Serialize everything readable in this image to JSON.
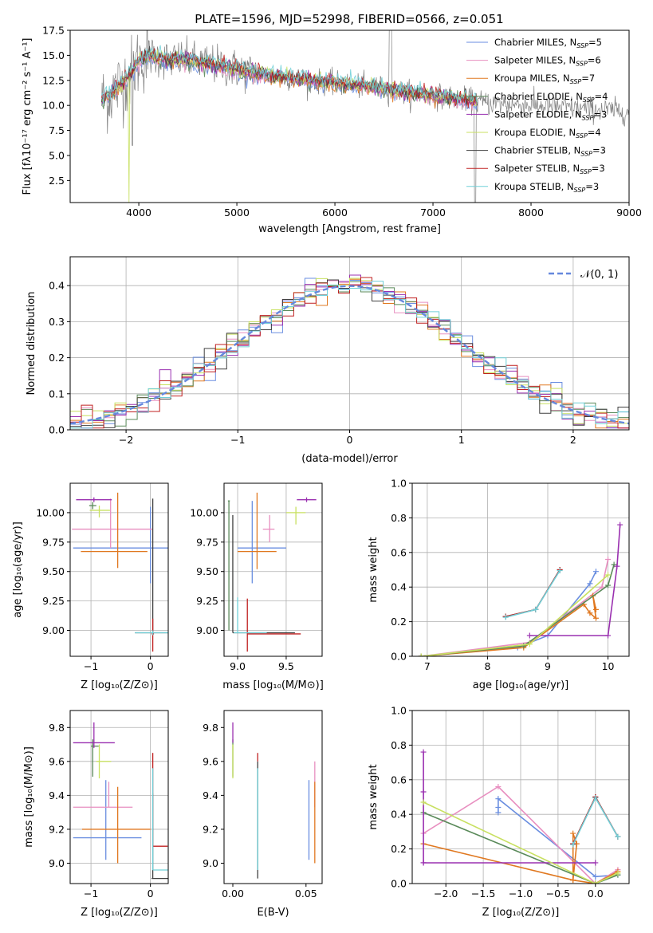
{
  "colors": [
    "#6a8ee0",
    "#e88fc0",
    "#e07820",
    "#5a8a5a",
    "#9a30b0",
    "#c8e060",
    "#404040",
    "#c02020",
    "#70d0d8"
  ],
  "chart_data": [
    {
      "id": "spectrum",
      "type": "line",
      "title": "PLATE=1596, MJD=52998, FIBERID=0566, z=0.051",
      "xlabel": "wavelength [Angstrom, rest frame]",
      "ylabel": "Flux [fλ10⁻¹⁷ erg cm⁻² s⁻¹ A⁻¹]",
      "xlim": [
        3300,
        9000
      ],
      "ylim": [
        0.3,
        17.5
      ],
      "xticks": [
        4000,
        5000,
        6000,
        7000,
        8000,
        9000
      ],
      "xticklabels": [
        "4000",
        "5000",
        "6000",
        "7000",
        "8000",
        "9000"
      ],
      "yticks": [
        2.5,
        5.0,
        7.5,
        10.0,
        12.5,
        15.0,
        17.5
      ],
      "yticklabels": [
        "2.5",
        "5.0",
        "7.5",
        "10.0",
        "12.5",
        "15.0",
        "17.5"
      ],
      "legend_position": "right",
      "legend": [
        {
          "model": "Chabrier MILES",
          "nssp": "=5"
        },
        {
          "model": "Salpeter MILES",
          "nssp": "=6"
        },
        {
          "model": "Kroupa MILES",
          "nssp": "=7"
        },
        {
          "model": "Chabrier ELODIE",
          "nssp": "=4"
        },
        {
          "model": "Salpeter ELODIE",
          "nssp": "=3"
        },
        {
          "model": "Kroupa ELODIE",
          "nssp": "=4"
        },
        {
          "model": "Chabrier STELIB",
          "nssp": "=3"
        },
        {
          "model": "Salpeter STELIB",
          "nssp": "=3"
        },
        {
          "model": "Kroupa STELIB",
          "nssp": "=3"
        }
      ],
      "legend_prefix": "N",
      "legend_sub": "SSP",
      "data_color": "#808080",
      "continuum": {
        "x": [
          3620,
          3700,
          3800,
          3900,
          4000,
          4100,
          4200,
          4300,
          4400,
          4500,
          4600,
          4700,
          4800,
          5000,
          5200,
          5400,
          5600,
          5800,
          6000,
          6200,
          6400,
          6600,
          6800,
          7000,
          7200,
          7400,
          7500
        ],
        "y": [
          10.5,
          11.0,
          12.0,
          13.0,
          14.5,
          15.0,
          14.8,
          14.5,
          14.6,
          14.5,
          14.3,
          14.2,
          14.0,
          13.6,
          13.2,
          12.9,
          12.7,
          12.4,
          12.2,
          12.0,
          11.8,
          11.5,
          11.2,
          11.0,
          10.7,
          10.5,
          10.3
        ]
      },
      "data_range": [
        3620,
        9000
      ],
      "model_range": [
        3620,
        7450
      ]
    },
    {
      "id": "residuals",
      "type": "line",
      "xlabel": "(data-model)/error",
      "ylabel": "Normed distribution",
      "xlim": [
        -2.5,
        2.5
      ],
      "ylim": [
        0,
        0.48
      ],
      "xticks": [
        -2,
        -1,
        0,
        1,
        2
      ],
      "xticklabels": [
        "−2",
        "−1",
        "0",
        "1",
        "2"
      ],
      "yticks": [
        0.0,
        0.1,
        0.2,
        0.3,
        0.4
      ],
      "yticklabels": [
        "0.0",
        "0.1",
        "0.2",
        "0.3",
        "0.4"
      ],
      "grid": true,
      "legend_position": "top-right",
      "reference_label": "𝒩(0, 1)",
      "reference_color": "#6688dd"
    },
    {
      "id": "age-vs-Z",
      "type": "scatter",
      "xlabel": "Z [log₁₀(Z/Z⊙)]",
      "ylabel": "age  [log₁₀(age/yr)]",
      "xlim": [
        -1.35,
        0.3
      ],
      "ylim": [
        8.78,
        10.25
      ],
      "xticks": [
        -1,
        0
      ],
      "xticklabels": [
        "−1",
        "0"
      ],
      "yticks": [
        9.0,
        9.25,
        9.5,
        9.75,
        10.0
      ],
      "yticklabels": [
        "9.00",
        "9.25",
        "9.50",
        "9.75",
        "10.00"
      ],
      "grid": true,
      "points": [
        {
          "color": 0,
          "x": 0.0,
          "y": 9.7,
          "xerr": [
            1.3,
            0.35
          ],
          "yerr": [
            0.3,
            0.35
          ]
        },
        {
          "color": 1,
          "x": -0.67,
          "y": 9.86,
          "xerr": [
            0.65,
            0.7
          ],
          "yerr": [
            0.16,
            0.26
          ]
        },
        {
          "color": 2,
          "x": -0.55,
          "y": 9.67,
          "xerr": [
            0.62,
            0.5
          ],
          "yerr": [
            0.14,
            0.5
          ]
        },
        {
          "color": 3,
          "x": -0.97,
          "y": 10.06,
          "xerr": [
            0.06,
            0.06
          ],
          "yerr": [
            0.03,
            0.03
          ]
        },
        {
          "color": 4,
          "x": -0.95,
          "y": 10.11,
          "xerr": [
            0.3,
            0.3
          ],
          "yerr": [
            0.02,
            0.02
          ]
        },
        {
          "color": 5,
          "x": -0.86,
          "y": 10.02,
          "xerr": [
            0.16,
            0.18
          ],
          "yerr": [
            0.06,
            0.04
          ]
        },
        {
          "color": 6,
          "x": 0.04,
          "y": 8.98,
          "xerr": [
            0.3,
            0.3
          ],
          "yerr": [
            0.01,
            1.14
          ]
        },
        {
          "color": 7,
          "x": 0.04,
          "y": 8.97,
          "xerr": [
            0.02,
            0.02
          ],
          "yerr": [
            0.15,
            0.13
          ]
        },
        {
          "color": 8,
          "x": 0.04,
          "y": 8.98,
          "xerr": [
            0.3,
            0.3
          ],
          "yerr": [
            0.02,
            0.02
          ]
        }
      ]
    },
    {
      "id": "age-vs-mass",
      "type": "scatter",
      "xlabel": "mass [log₁₀(M/M⊙)]",
      "ylabel": "",
      "xlim": [
        8.86,
        9.87
      ],
      "ylim": [
        8.78,
        10.25
      ],
      "xticks": [
        9.0,
        9.5
      ],
      "xticklabels": [
        "9.0",
        "9.5"
      ],
      "yticks": [
        9.0,
        9.25,
        9.5,
        9.75,
        10.0
      ],
      "yticklabels": [
        "9.00",
        "9.25",
        "9.50",
        "9.75",
        "10.00"
      ],
      "grid": true,
      "points": [
        {
          "color": 0,
          "x": 9.15,
          "y": 9.7,
          "xerr": [
            0.15,
            0.35
          ],
          "yerr": [
            0.3,
            0.4
          ]
        },
        {
          "color": 1,
          "x": 9.33,
          "y": 9.86,
          "xerr": [
            0.07,
            0.05
          ],
          "yerr": [
            0.11,
            0.12
          ]
        },
        {
          "color": 2,
          "x": 9.2,
          "y": 9.67,
          "xerr": [
            0.2,
            0.2
          ],
          "yerr": [
            0.15,
            0.5
          ]
        },
        {
          "color": 3,
          "x": 8.91,
          "y": 10.1,
          "xerr": [
            0.01,
            0.01
          ],
          "yerr": [
            1.1,
            0.0
          ]
        },
        {
          "color": 4,
          "x": 9.71,
          "y": 10.11,
          "xerr": [
            0.1,
            0.1
          ],
          "yerr": [
            0.02,
            0.02
          ]
        },
        {
          "color": 5,
          "x": 9.6,
          "y": 10.0,
          "xerr": [
            0.1,
            0.1
          ],
          "yerr": [
            0.1,
            0.05
          ]
        },
        {
          "color": 6,
          "x": 8.95,
          "y": 8.98,
          "xerr": [
            0.0,
            0.64
          ],
          "yerr": [
            0.0,
            1.0
          ]
        },
        {
          "color": 7,
          "x": 9.1,
          "y": 8.97,
          "xerr": [
            0.0,
            0.55
          ],
          "yerr": [
            0.15,
            0.3
          ]
        },
        {
          "color": 8,
          "x": 9.0,
          "y": 8.98,
          "xerr": [
            0.04,
            0.3
          ],
          "yerr": [
            0.0,
            0.3
          ]
        }
      ]
    },
    {
      "id": "weight-vs-age",
      "type": "line",
      "xlabel": "age  [log₁₀(age/yr)]",
      "ylabel": "mass weight",
      "xlim": [
        6.75,
        10.35
      ],
      "ylim": [
        0.0,
        1.0
      ],
      "xticks": [
        7,
        8,
        9,
        10
      ],
      "xticklabels": [
        "7",
        "8",
        "9",
        "10"
      ],
      "yticks": [
        0.0,
        0.2,
        0.4,
        0.6,
        0.8,
        1.0
      ],
      "yticklabels": [
        "0.0",
        "0.2",
        "0.4",
        "0.6",
        "0.8",
        "1.0"
      ],
      "grid": true,
      "series": [
        {
          "color": 0,
          "x": [
            6.9,
            8.5,
            9.0,
            9.7,
            9.8
          ],
          "y": [
            0.0,
            0.05,
            0.12,
            0.42,
            0.49
          ]
        },
        {
          "color": 1,
          "x": [
            6.9,
            8.7,
            9.9,
            10.0
          ],
          "y": [
            0.0,
            0.08,
            0.4,
            0.56
          ]
        },
        {
          "color": 2,
          "x": [
            6.9,
            8.6,
            9.6,
            9.7,
            9.8,
            9.75,
            9.8
          ],
          "y": [
            0.0,
            0.05,
            0.3,
            0.25,
            0.22,
            0.35,
            0.27
          ]
        },
        {
          "color": 3,
          "x": [
            6.9,
            8.6,
            10.0,
            10.1
          ],
          "y": [
            0.0,
            0.06,
            0.41,
            0.53
          ]
        },
        {
          "color": 4,
          "x": [
            8.7,
            10.0,
            10.15,
            10.2
          ],
          "y": [
            0.12,
            0.12,
            0.52,
            0.76
          ]
        },
        {
          "color": 5,
          "x": [
            6.9,
            8.7,
            10.0
          ],
          "y": [
            0.0,
            0.07,
            0.47
          ]
        },
        {
          "color": 6,
          "x": [
            8.3,
            8.8,
            9.2
          ],
          "y": [
            0.23,
            0.27,
            0.5
          ]
        },
        {
          "color": 7,
          "x": [
            8.3,
            8.8,
            9.2
          ],
          "y": [
            0.23,
            0.27,
            0.5
          ]
        },
        {
          "color": 8,
          "x": [
            8.3,
            8.8,
            9.2
          ],
          "y": [
            0.225,
            0.27,
            0.495
          ]
        }
      ]
    },
    {
      "id": "mass-vs-Z",
      "type": "scatter",
      "xlabel": "Z [log₁₀(Z/Z⊙)]",
      "ylabel": "mass [log₁₀(M/M⊙)]",
      "xlim": [
        -1.35,
        0.3
      ],
      "ylim": [
        8.88,
        9.9
      ],
      "xticks": [
        -1,
        0
      ],
      "xticklabels": [
        "−1",
        "0"
      ],
      "yticks": [
        9.0,
        9.2,
        9.4,
        9.6,
        9.8
      ],
      "yticklabels": [
        "9.0",
        "9.2",
        "9.4",
        "9.6",
        "9.8"
      ],
      "grid": true,
      "points": [
        {
          "color": 0,
          "x": -0.75,
          "y": 9.15,
          "xerr": [
            0.55,
            0.6
          ],
          "yerr": [
            0.13,
            0.34
          ]
        },
        {
          "color": 1,
          "x": -0.7,
          "y": 9.33,
          "xerr": [
            0.6,
            0.4
          ],
          "yerr": [
            0.0,
            0.15
          ]
        },
        {
          "color": 2,
          "x": -0.55,
          "y": 9.2,
          "xerr": [
            0.6,
            0.55
          ],
          "yerr": [
            0.2,
            0.25
          ]
        },
        {
          "color": 3,
          "x": -0.97,
          "y": 9.69,
          "xerr": [
            0.03,
            0.1
          ],
          "yerr": [
            0.18,
            0.04
          ]
        },
        {
          "color": 4,
          "x": -0.95,
          "y": 9.71,
          "xerr": [
            0.35,
            0.35
          ],
          "yerr": [
            0.03,
            0.12
          ]
        },
        {
          "color": 5,
          "x": -0.86,
          "y": 9.6,
          "xerr": [
            0.05,
            0.2
          ],
          "yerr": [
            0.1,
            0.1
          ]
        },
        {
          "color": 6,
          "x": 0.04,
          "y": 8.91,
          "xerr": [
            0.02,
            0.27
          ],
          "yerr": [
            0.0,
            0.5
          ]
        },
        {
          "color": 7,
          "x": 0.04,
          "y": 9.1,
          "xerr": [
            0.0,
            0.25
          ],
          "yerr": [
            0.0,
            0.55
          ]
        },
        {
          "color": 8,
          "x": 0.04,
          "y": 8.96,
          "xerr": [
            0.0,
            0.27
          ],
          "yerr": [
            0.0,
            0.6
          ]
        }
      ]
    },
    {
      "id": "mass-vs-ebv",
      "type": "scatter",
      "xlabel": "E(B-V)",
      "ylabel": "",
      "xlim": [
        -0.006,
        0.061
      ],
      "ylim": [
        8.88,
        9.9
      ],
      "xticks": [
        0.0,
        0.05
      ],
      "xticklabels": [
        "0.00",
        "0.05"
      ],
      "yticks": [
        9.0,
        9.2,
        9.4,
        9.6,
        9.8
      ],
      "yticklabels": [
        "9.0",
        "9.2",
        "9.4",
        "9.6",
        "9.8"
      ],
      "grid": false,
      "points": [
        {
          "color": 0,
          "x": 0.052,
          "y": 9.15,
          "xerr": [
            0.0,
            0.0
          ],
          "yerr": [
            0.13,
            0.34
          ]
        },
        {
          "color": 1,
          "x": 0.056,
          "y": 9.33,
          "xerr": [
            0.0,
            0.0
          ],
          "yerr": [
            0.0,
            0.27
          ]
        },
        {
          "color": 2,
          "x": 0.056,
          "y": 9.2,
          "xerr": [
            0.0,
            0.0
          ],
          "yerr": [
            0.2,
            0.28
          ]
        },
        {
          "color": 3,
          "x": 0.0,
          "y": 9.69,
          "xerr": [
            0.0,
            0.0
          ],
          "yerr": [
            0.18,
            0.04
          ]
        },
        {
          "color": 4,
          "x": 0.0,
          "y": 9.71,
          "xerr": [
            0.0,
            0.0
          ],
          "yerr": [
            0.0,
            0.12
          ]
        },
        {
          "color": 5,
          "x": 0.0,
          "y": 9.6,
          "xerr": [
            0.0,
            0.0
          ],
          "yerr": [
            0.1,
            0.1
          ]
        },
        {
          "color": 6,
          "x": 0.017,
          "y": 8.91,
          "xerr": [
            0.0,
            0.0
          ],
          "yerr": [
            0.0,
            0.69
          ]
        },
        {
          "color": 7,
          "x": 0.017,
          "y": 9.6,
          "xerr": [
            0.0,
            0.0
          ],
          "yerr": [
            0.0,
            0.05
          ]
        },
        {
          "color": 8,
          "x": 0.017,
          "y": 8.96,
          "xerr": [
            0.0,
            0.0
          ],
          "yerr": [
            0.0,
            0.6
          ]
        }
      ]
    },
    {
      "id": "weight-vs-Z",
      "type": "line",
      "xlabel": "Z [log₁₀(Z/Z⊙)]",
      "ylabel": "mass weight",
      "xlim": [
        -2.45,
        0.45
      ],
      "ylim": [
        0.0,
        1.0
      ],
      "xticks": [
        -2.0,
        -1.5,
        -1.0,
        -0.5,
        0.0
      ],
      "xticklabels": [
        "−2.0",
        "−1.5",
        "−1.0",
        "−0.5",
        "0.0"
      ],
      "yticks": [
        0.0,
        0.2,
        0.4,
        0.6,
        0.8,
        1.0
      ],
      "yticklabels": [
        "0.0",
        "0.2",
        "0.4",
        "0.6",
        "0.8",
        "1.0"
      ],
      "grid": true,
      "series": [
        {
          "color": 0,
          "x": [
            -1.3,
            -1.3,
            -1.3,
            0.0,
            0.3
          ],
          "y": [
            0.41,
            0.44,
            0.49,
            0.04,
            0.05
          ]
        },
        {
          "color": 1,
          "x": [
            -2.3,
            -1.3,
            0.0,
            0.3
          ],
          "y": [
            0.29,
            0.56,
            0.0,
            0.08
          ]
        },
        {
          "color": 2,
          "x": [
            -2.3,
            -0.3,
            -0.3,
            -0.25,
            -0.3,
            0.0,
            0.3
          ],
          "y": [
            0.23,
            0.02,
            0.29,
            0.23,
            0.02,
            0.0,
            0.07
          ]
        },
        {
          "color": 3,
          "x": [
            -2.3,
            0.0,
            0.3
          ],
          "y": [
            0.41,
            0.0,
            0.05
          ]
        },
        {
          "color": 4,
          "x": [
            -2.3,
            -2.3,
            -2.3,
            -2.3,
            0.0
          ],
          "y": [
            0.12,
            0.76,
            0.53,
            0.12,
            0.12
          ]
        },
        {
          "color": 5,
          "x": [
            -2.3,
            0.0,
            0.3
          ],
          "y": [
            0.47,
            0.0,
            0.06
          ]
        },
        {
          "color": 6,
          "x": [
            -0.3,
            0.0,
            0.3
          ],
          "y": [
            0.23,
            0.5,
            0.27
          ]
        },
        {
          "color": 7,
          "x": [
            -0.3,
            0.0,
            0.3
          ],
          "y": [
            0.23,
            0.5,
            0.27
          ]
        },
        {
          "color": 8,
          "x": [
            -0.3,
            0.0,
            0.3
          ],
          "y": [
            0.225,
            0.495,
            0.27
          ]
        }
      ]
    }
  ]
}
